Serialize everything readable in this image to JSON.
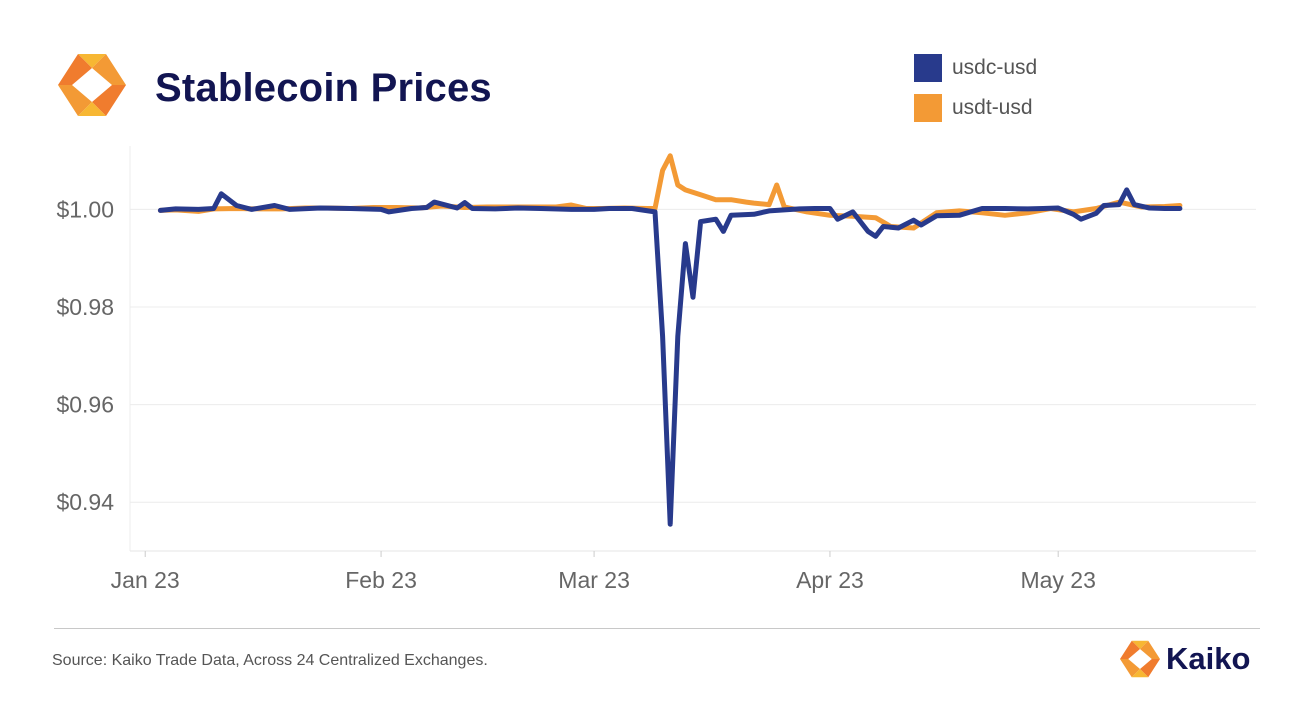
{
  "header": {
    "title": "Stablecoin Prices",
    "logo_icon": "kaiko-logo-icon"
  },
  "legend": {
    "items": [
      {
        "label": "usdc-usd",
        "color": "#283A8C"
      },
      {
        "label": "usdt-usd",
        "color": "#F39A35"
      }
    ]
  },
  "footer": {
    "source": "Source: Kaiko Trade Data, Across 24 Centralized Exchanges.",
    "brand_name": "Kaiko",
    "brand_icon": "kaiko-logo-icon"
  },
  "chart_data": {
    "type": "line",
    "title": "Stablecoin Prices",
    "xlabel": "",
    "ylabel": "",
    "ylim": [
      0.93,
      1.013
    ],
    "xlim": [
      "2022-12-30",
      "2023-05-27"
    ],
    "grid": true,
    "legend_position": "top-right",
    "x_ticks": [
      {
        "date": "2023-01-01",
        "label": "Jan 23"
      },
      {
        "date": "2023-02-01",
        "label": "Feb 23"
      },
      {
        "date": "2023-03-01",
        "label": "Mar 23"
      },
      {
        "date": "2023-04-01",
        "label": "Apr 23"
      },
      {
        "date": "2023-05-01",
        "label": "May 23"
      }
    ],
    "y_ticks": [
      {
        "value": 1.0,
        "label": "$1.00"
      },
      {
        "value": 0.98,
        "label": "$0.98"
      },
      {
        "value": 0.96,
        "label": "$0.96"
      },
      {
        "value": 0.94,
        "label": "$0.94"
      }
    ],
    "series": [
      {
        "name": "usdt-usd",
        "color": "#F39A35",
        "points": [
          [
            "2023-01-03",
            0.9998
          ],
          [
            "2023-01-05",
            0.9999
          ],
          [
            "2023-01-08",
            0.9996
          ],
          [
            "2023-01-10",
            1.0001
          ],
          [
            "2023-01-13",
            1.0002
          ],
          [
            "2023-01-16",
            1.0001
          ],
          [
            "2023-01-19",
            1.0001
          ],
          [
            "2023-01-22",
            1.0003
          ],
          [
            "2023-01-25",
            1.0003
          ],
          [
            "2023-01-28",
            1.0002
          ],
          [
            "2023-01-31",
            1.0004
          ],
          [
            "2023-02-03",
            1.0004
          ],
          [
            "2023-02-06",
            1.0003
          ],
          [
            "2023-02-09",
            1.0007
          ],
          [
            "2023-02-12",
            1.0004
          ],
          [
            "2023-02-15",
            1.0005
          ],
          [
            "2023-02-18",
            1.0005
          ],
          [
            "2023-02-21",
            1.0005
          ],
          [
            "2023-02-24",
            1.0005
          ],
          [
            "2023-02-26",
            1.0009
          ],
          [
            "2023-02-28",
            1.0002
          ],
          [
            "2023-03-02",
            1.0002
          ],
          [
            "2023-03-05",
            1.0003
          ],
          [
            "2023-03-08",
            1.0002
          ],
          [
            "2023-03-09",
            1.0002
          ],
          [
            "2023-03-10",
            1.008
          ],
          [
            "2023-03-11",
            1.011
          ],
          [
            "2023-03-12",
            1.005
          ],
          [
            "2023-03-13",
            1.004
          ],
          [
            "2023-03-15",
            1.003
          ],
          [
            "2023-03-17",
            1.002
          ],
          [
            "2023-03-19",
            1.002
          ],
          [
            "2023-03-21",
            1.0015
          ],
          [
            "2023-03-22",
            1.0013
          ],
          [
            "2023-03-24",
            1.001
          ],
          [
            "2023-03-25",
            1.005
          ],
          [
            "2023-03-26",
            1.0005
          ],
          [
            "2023-03-29",
            0.9995
          ],
          [
            "2023-04-01",
            0.9988
          ],
          [
            "2023-04-04",
            0.9986
          ],
          [
            "2023-04-07",
            0.9983
          ],
          [
            "2023-04-09",
            0.9965
          ],
          [
            "2023-04-12",
            0.9962
          ],
          [
            "2023-04-15",
            0.9993
          ],
          [
            "2023-04-18",
            0.9997
          ],
          [
            "2023-04-21",
            0.9993
          ],
          [
            "2023-04-24",
            0.9988
          ],
          [
            "2023-04-27",
            0.9993
          ],
          [
            "2023-04-30",
            1.0002
          ],
          [
            "2023-05-03",
            0.9995
          ],
          [
            "2023-05-06",
            1.0002
          ],
          [
            "2023-05-09",
            1.0015
          ],
          [
            "2023-05-12",
            1.0005
          ],
          [
            "2023-05-15",
            1.0006
          ],
          [
            "2023-05-17",
            1.0008
          ]
        ]
      },
      {
        "name": "usdc-usd",
        "color": "#283A8C",
        "points": [
          [
            "2023-01-03",
            0.9998
          ],
          [
            "2023-01-05",
            1.0001
          ],
          [
            "2023-01-08",
            1.0
          ],
          [
            "2023-01-10",
            1.0002
          ],
          [
            "2023-01-11",
            1.0032
          ],
          [
            "2023-01-13",
            1.0008
          ],
          [
            "2023-01-15",
            1.0
          ],
          [
            "2023-01-18",
            1.0008
          ],
          [
            "2023-01-20",
            1.0
          ],
          [
            "2023-01-24",
            1.0003
          ],
          [
            "2023-01-28",
            1.0002
          ],
          [
            "2023-02-01",
            1.0
          ],
          [
            "2023-02-02",
            0.9995
          ],
          [
            "2023-02-05",
            1.0002
          ],
          [
            "2023-02-07",
            1.0004
          ],
          [
            "2023-02-08",
            1.0015
          ],
          [
            "2023-02-11",
            1.0003
          ],
          [
            "2023-02-12",
            1.0014
          ],
          [
            "2023-02-13",
            1.0002
          ],
          [
            "2023-02-16",
            1.0001
          ],
          [
            "2023-02-19",
            1.0003
          ],
          [
            "2023-02-22",
            1.0002
          ],
          [
            "2023-02-26",
            1.0
          ],
          [
            "2023-02-28",
            1.0
          ],
          [
            "2023-03-01",
            1.0
          ],
          [
            "2023-03-03",
            1.0002
          ],
          [
            "2023-03-06",
            1.0002
          ],
          [
            "2023-03-09",
            0.9995
          ],
          [
            "2023-03-10",
            0.974
          ],
          [
            "2023-03-11",
            0.9355
          ],
          [
            "2023-03-12",
            0.974
          ],
          [
            "2023-03-13",
            0.993
          ],
          [
            "2023-03-14",
            0.982
          ],
          [
            "2023-03-15",
            0.9975
          ],
          [
            "2023-03-17",
            0.998
          ],
          [
            "2023-03-18",
            0.9955
          ],
          [
            "2023-03-19",
            0.9988
          ],
          [
            "2023-03-22",
            0.999
          ],
          [
            "2023-03-24",
            0.9997
          ],
          [
            "2023-03-28",
            1.0001
          ],
          [
            "2023-03-30",
            1.0002
          ],
          [
            "2023-04-01",
            1.0002
          ],
          [
            "2023-04-02",
            0.998
          ],
          [
            "2023-04-04",
            0.9995
          ],
          [
            "2023-04-06",
            0.9955
          ],
          [
            "2023-04-07",
            0.9945
          ],
          [
            "2023-04-08",
            0.9965
          ],
          [
            "2023-04-10",
            0.9962
          ],
          [
            "2023-04-12",
            0.9978
          ],
          [
            "2023-04-13",
            0.9968
          ],
          [
            "2023-04-15",
            0.9987
          ],
          [
            "2023-04-18",
            0.9988
          ],
          [
            "2023-04-21",
            1.0002
          ],
          [
            "2023-04-24",
            1.0002
          ],
          [
            "2023-04-27",
            1.0001
          ],
          [
            "2023-04-29",
            1.0002
          ],
          [
            "2023-05-01",
            1.0003
          ],
          [
            "2023-05-03",
            0.999
          ],
          [
            "2023-05-04",
            0.998
          ],
          [
            "2023-05-06",
            0.9992
          ],
          [
            "2023-05-07",
            1.0008
          ],
          [
            "2023-05-09",
            1.001
          ],
          [
            "2023-05-10",
            1.004
          ],
          [
            "2023-05-11",
            1.001
          ],
          [
            "2023-05-13",
            1.0003
          ],
          [
            "2023-05-15",
            1.0002
          ],
          [
            "2023-05-17",
            1.0002
          ]
        ]
      }
    ]
  }
}
